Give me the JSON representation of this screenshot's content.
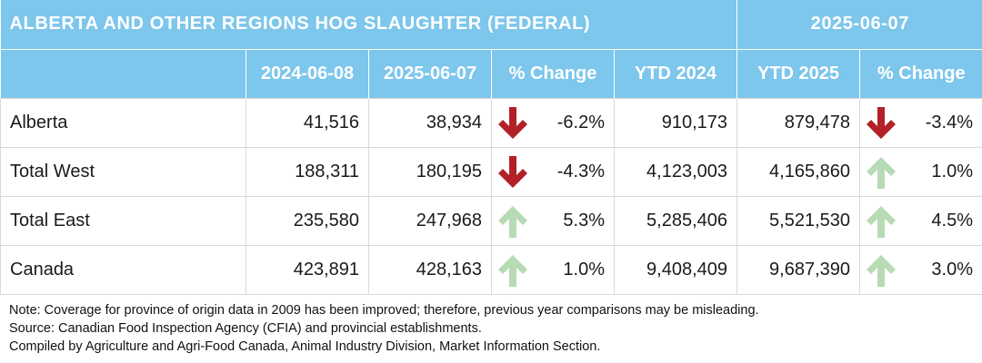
{
  "title": "ALBERTA AND OTHER REGIONS HOG SLAUGHTER (FEDERAL)",
  "report_date": "2025-06-07",
  "columns": [
    "",
    "2024-06-08",
    "2025-06-07",
    "% Change",
    "YTD 2024",
    "YTD 2025",
    "% Change"
  ],
  "rows": [
    {
      "region": "Alberta",
      "prev": "41,516",
      "curr": "38,934",
      "chg": "-6.2%",
      "chg_dir": "down",
      "ytd_prev": "910,173",
      "ytd_curr": "879,478",
      "ytd_chg": "-3.4%",
      "ytd_chg_dir": "down"
    },
    {
      "region": "Total West",
      "prev": "188,311",
      "curr": "180,195",
      "chg": "-4.3%",
      "chg_dir": "down",
      "ytd_prev": "4,123,003",
      "ytd_curr": "4,165,860",
      "ytd_chg": "1.0%",
      "ytd_chg_dir": "up"
    },
    {
      "region": "Total East",
      "prev": "235,580",
      "curr": "247,968",
      "chg": "5.3%",
      "chg_dir": "up",
      "ytd_prev": "5,285,406",
      "ytd_curr": "5,521,530",
      "ytd_chg": "4.5%",
      "ytd_chg_dir": "up"
    },
    {
      "region": "Canada",
      "prev": "423,891",
      "curr": "428,163",
      "chg": "1.0%",
      "chg_dir": "up",
      "ytd_prev": "9,408,409",
      "ytd_curr": "9,687,390",
      "ytd_chg": "3.0%",
      "ytd_chg_dir": "up"
    }
  ],
  "colors": {
    "header_bg": "#7dc6ec",
    "down_arrow": "#b22028",
    "up_arrow": "#b7dbb5"
  },
  "icons": {
    "down": "arrow-down-icon",
    "up": "arrow-up-icon"
  },
  "notes": [
    "Note: Coverage for province of origin data in 2009 has been improved; therefore, previous year comparisons may be misleading.",
    "Source: Canadian Food Inspection Agency (CFIA) and provincial establishments.",
    "Compiled by Agriculture and Agri-Food Canada, Animal Industry Division, Market Information Section."
  ]
}
